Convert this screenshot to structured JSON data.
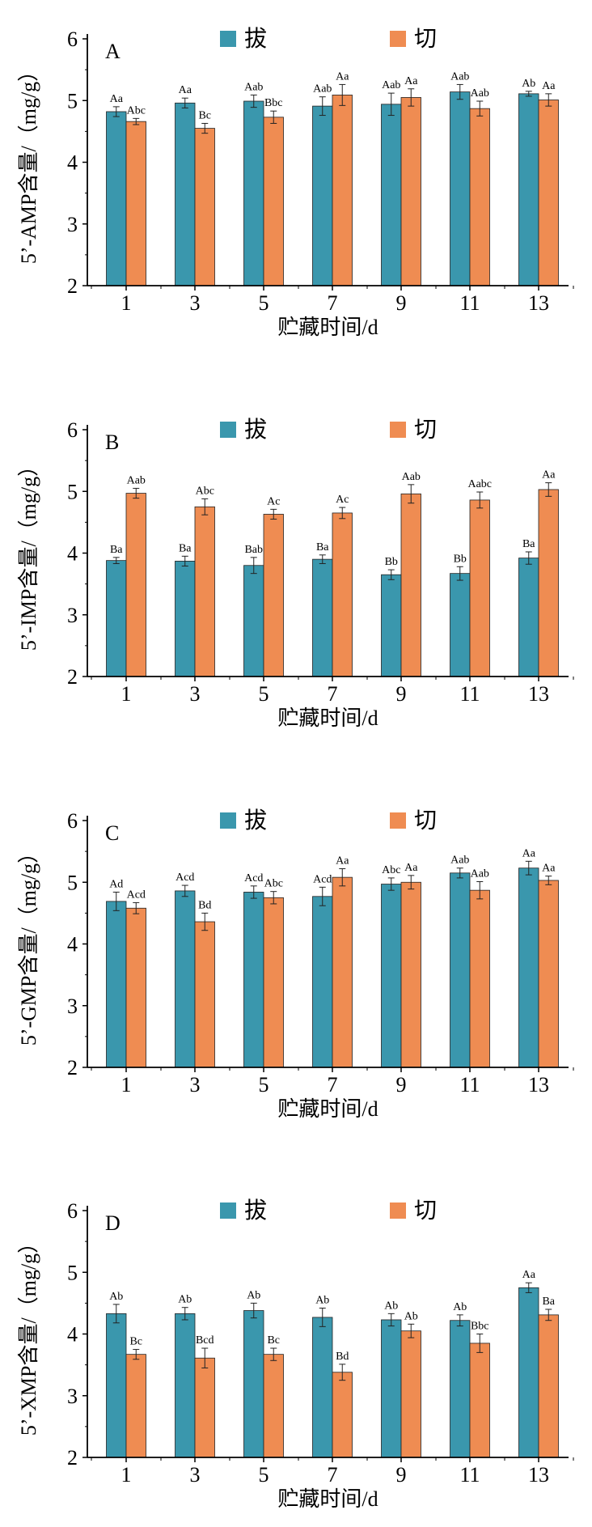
{
  "chart_data": [
    {
      "type": "bar",
      "panel": "A",
      "categories": [
        "1",
        "3",
        "5",
        "7",
        "9",
        "11",
        "13"
      ],
      "xlabel": "贮藏时间/d",
      "ylabel": "5’-AMP含量/（mg/g）",
      "ylim": [
        2,
        6
      ],
      "yticks": [
        2,
        3,
        4,
        5,
        6
      ],
      "legend_position": "top",
      "series": [
        {
          "name": "拔",
          "color": "#3a97ad",
          "values": [
            4.82,
            4.96,
            4.99,
            4.91,
            4.94,
            5.14,
            5.11
          ],
          "errors": [
            0.08,
            0.08,
            0.1,
            0.15,
            0.18,
            0.12,
            0.04
          ],
          "labels": [
            "Aa",
            "Aa",
            "Aab",
            "Aab",
            "Aab",
            "Aab",
            "Ab"
          ]
        },
        {
          "name": "切",
          "color": "#ef8c52",
          "values": [
            4.66,
            4.55,
            4.73,
            5.09,
            5.05,
            4.87,
            5.01
          ],
          "errors": [
            0.05,
            0.08,
            0.1,
            0.17,
            0.14,
            0.12,
            0.1
          ],
          "labels": [
            "Abc",
            "Bc",
            "Bbc",
            "Aa",
            "Aa",
            "Aab",
            "Aa"
          ]
        }
      ]
    },
    {
      "type": "bar",
      "panel": "B",
      "categories": [
        "1",
        "3",
        "5",
        "7",
        "9",
        "11",
        "13"
      ],
      "xlabel": "贮藏时间/d",
      "ylabel": "5’-IMP含量/（mg/g）",
      "ylim": [
        2,
        6
      ],
      "yticks": [
        2,
        3,
        4,
        5,
        6
      ],
      "legend_position": "top",
      "series": [
        {
          "name": "拔",
          "color": "#3a97ad",
          "values": [
            3.88,
            3.87,
            3.8,
            3.9,
            3.65,
            3.67,
            3.92
          ],
          "errors": [
            0.05,
            0.08,
            0.13,
            0.07,
            0.08,
            0.11,
            0.1
          ],
          "labels": [
            "Ba",
            "Ba",
            "Bab",
            "Ba",
            "Bb",
            "Bb",
            "Ba"
          ]
        },
        {
          "name": "切",
          "color": "#ef8c52",
          "values": [
            4.97,
            4.75,
            4.63,
            4.65,
            4.96,
            4.86,
            5.03
          ],
          "errors": [
            0.08,
            0.13,
            0.08,
            0.09,
            0.15,
            0.13,
            0.11
          ],
          "labels": [
            "Aab",
            "Abc",
            "Ac",
            "Ac",
            "Aab",
            "Aabc",
            "Aa"
          ]
        }
      ]
    },
    {
      "type": "bar",
      "panel": "C",
      "categories": [
        "1",
        "3",
        "5",
        "7",
        "9",
        "11",
        "13"
      ],
      "xlabel": "贮藏时间/d",
      "ylabel": "5’-GMP含量/（mg/g）",
      "ylim": [
        2,
        6
      ],
      "yticks": [
        2,
        3,
        4,
        5,
        6
      ],
      "legend_position": "top",
      "series": [
        {
          "name": "拔",
          "color": "#3a97ad",
          "values": [
            4.69,
            4.86,
            4.84,
            4.77,
            4.97,
            5.15,
            5.23
          ],
          "errors": [
            0.15,
            0.09,
            0.1,
            0.15,
            0.1,
            0.08,
            0.11
          ],
          "labels": [
            "Ad",
            "Acd",
            "Acd",
            "Acd",
            "Abc",
            "Aab",
            "Aa"
          ]
        },
        {
          "name": "切",
          "color": "#ef8c52",
          "values": [
            4.58,
            4.36,
            4.75,
            5.08,
            5.0,
            4.87,
            5.03
          ],
          "errors": [
            0.09,
            0.14,
            0.1,
            0.14,
            0.11,
            0.14,
            0.07
          ],
          "labels": [
            "Acd",
            "Bd",
            "Abc",
            "Aa",
            "Aa",
            "Aab",
            "Aa"
          ]
        }
      ]
    },
    {
      "type": "bar",
      "panel": "D",
      "categories": [
        "1",
        "3",
        "5",
        "7",
        "9",
        "11",
        "13"
      ],
      "xlabel": "贮藏时间/d",
      "ylabel": "5’-XMP含量/（mg/g）",
      "ylim": [
        2,
        6
      ],
      "yticks": [
        2,
        3,
        4,
        5,
        6
      ],
      "legend_position": "top",
      "series": [
        {
          "name": "拔",
          "color": "#3a97ad",
          "values": [
            4.33,
            4.33,
            4.38,
            4.27,
            4.23,
            4.22,
            4.75
          ],
          "errors": [
            0.15,
            0.1,
            0.12,
            0.15,
            0.1,
            0.09,
            0.08
          ],
          "labels": [
            "Ab",
            "Ab",
            "Ab",
            "Ab",
            "Ab",
            "Ab",
            "Aa"
          ]
        },
        {
          "name": "切",
          "color": "#ef8c52",
          "values": [
            3.67,
            3.61,
            3.67,
            3.38,
            4.05,
            3.85,
            4.31
          ],
          "errors": [
            0.08,
            0.16,
            0.1,
            0.13,
            0.11,
            0.15,
            0.09
          ],
          "labels": [
            "Bc",
            "Bcd",
            "Bc",
            "Bd",
            "Ab",
            "Bbc",
            "Ba"
          ]
        }
      ]
    }
  ]
}
